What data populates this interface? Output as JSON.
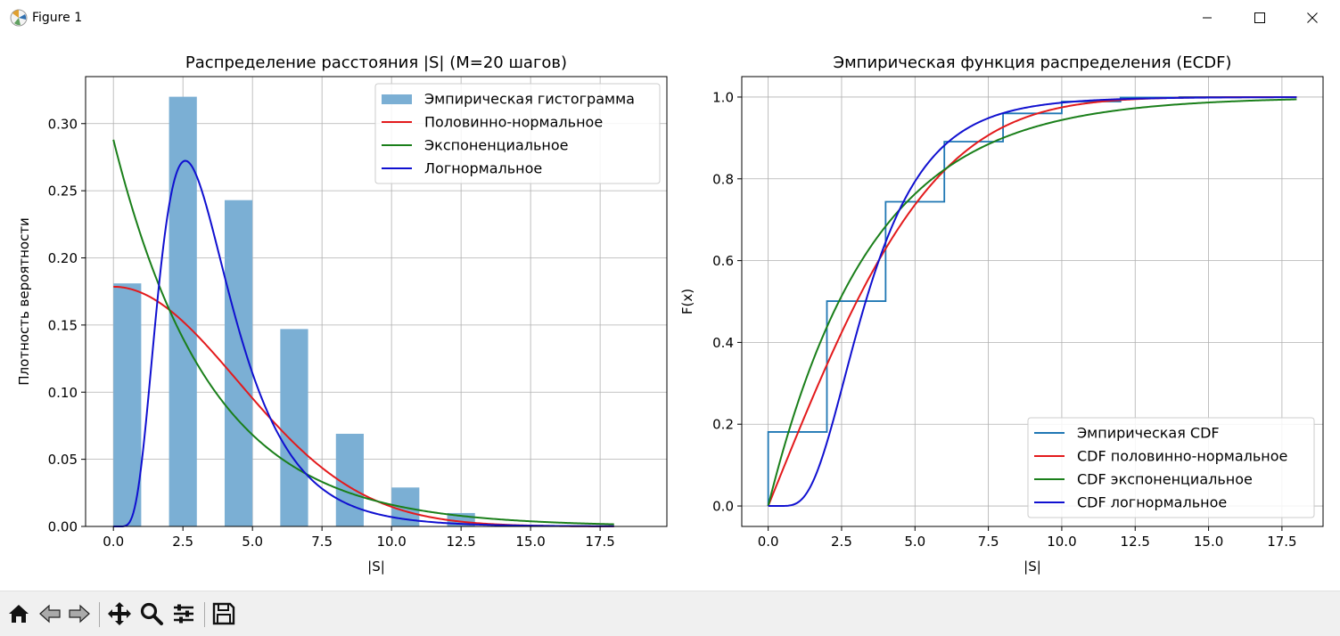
{
  "window": {
    "title": "Figure 1",
    "icons": [
      "matplotlib-icon",
      "minimize-icon",
      "maximize-icon",
      "close-icon"
    ]
  },
  "toolbar": {
    "buttons": [
      "home-icon",
      "back-icon",
      "forward-icon",
      "pan-icon",
      "zoom-icon",
      "configure-subplots-icon",
      "save-icon"
    ]
  },
  "colors": {
    "hist": "#7bafd4",
    "ecdf": "#1f77b4",
    "halfnorm": "#e31a1c",
    "expon": "#1a7f1a",
    "lognorm": "#1010d0",
    "grid": "#b0b0b0"
  },
  "chart_data": [
    {
      "type": "bar",
      "title": "Распределение расстояния |S| (M=20 шагов)",
      "xlabel": "|S|",
      "ylabel": "Плотность вероятности",
      "xlim": [
        -1,
        19.9
      ],
      "ylim": [
        0,
        0.335
      ],
      "xticks": [
        "0.0",
        "2.5",
        "5.0",
        "7.5",
        "10.0",
        "12.5",
        "15.0",
        "17.5"
      ],
      "xtick_values": [
        0,
        2.5,
        5,
        7.5,
        10,
        12.5,
        15,
        17.5
      ],
      "yticks": [
        "0.00",
        "0.05",
        "0.10",
        "0.15",
        "0.20",
        "0.25",
        "0.30"
      ],
      "ytick_values": [
        0,
        0.05,
        0.1,
        0.15,
        0.2,
        0.25,
        0.3
      ],
      "grid": true,
      "legend_position": "top-right",
      "bars": {
        "name": "Эмпирическая гистограмма",
        "centers": [
          0.5,
          2.5,
          4.5,
          6.5,
          8.5,
          10.5,
          12.5
        ],
        "width": 1.0,
        "values": [
          0.181,
          0.32,
          0.243,
          0.147,
          0.069,
          0.029,
          0.01
        ]
      },
      "series": [
        {
          "name": "Половинно-нормальное",
          "x_range": [
            0,
            18
          ],
          "kind": "halfnorm",
          "sigma": 4.47
        },
        {
          "name": "Экспоненциальное",
          "x_range": [
            0,
            18
          ],
          "kind": "expon",
          "rate": 0.288
        },
        {
          "name": "Логнормальное",
          "x_range": [
            0,
            18
          ],
          "kind": "lognorm",
          "mu": 1.2,
          "s": 0.5
        }
      ]
    },
    {
      "type": "line",
      "title": "Эмпирическая функция распределения (ECDF)",
      "xlabel": "|S|",
      "ylabel": "F(x)",
      "xlim": [
        -0.9,
        18.9
      ],
      "ylim": [
        -0.05,
        1.05
      ],
      "xticks": [
        "0.0",
        "2.5",
        "5.0",
        "7.5",
        "10.0",
        "12.5",
        "15.0",
        "17.5"
      ],
      "xtick_values": [
        0,
        2.5,
        5,
        7.5,
        10,
        12.5,
        15,
        17.5
      ],
      "yticks": [
        "0.0",
        "0.2",
        "0.4",
        "0.6",
        "0.8",
        "1.0"
      ],
      "ytick_values": [
        0,
        0.2,
        0.4,
        0.6,
        0.8,
        1.0
      ],
      "grid": true,
      "legend_position": "bottom-right",
      "step": {
        "name": "Эмпирическая CDF",
        "x": [
          0,
          2,
          4,
          6,
          8,
          10,
          12,
          14,
          16,
          18
        ],
        "y": [
          0.181,
          0.501,
          0.744,
          0.891,
          0.96,
          0.989,
          0.999,
          1.0,
          1.0,
          1.0
        ]
      },
      "series": [
        {
          "name": "CDF половинно-нормальное",
          "x_range": [
            0,
            18
          ],
          "kind": "halfnorm",
          "sigma": 4.47
        },
        {
          "name": "CDF экспоненциальное",
          "x_range": [
            0,
            18
          ],
          "kind": "expon",
          "rate": 0.288
        },
        {
          "name": "CDF логнормальное",
          "x_range": [
            0,
            18
          ],
          "kind": "lognorm",
          "mu": 1.2,
          "s": 0.5
        }
      ]
    }
  ]
}
